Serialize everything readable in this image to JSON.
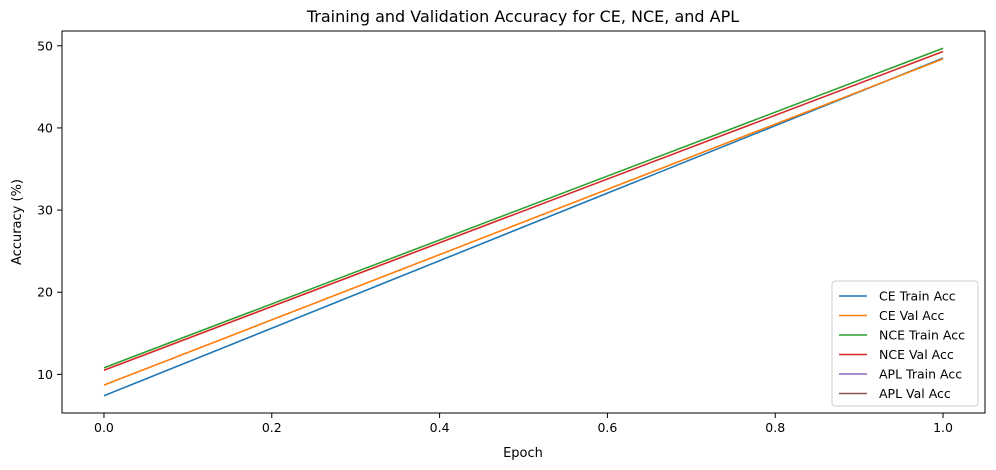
{
  "chart_data": {
    "type": "line",
    "title": "Training and Validation Accuracy for CE, NCE, and APL",
    "xlabel": "Epoch",
    "ylabel": "Accuracy (%)",
    "x": [
      0,
      1
    ],
    "xlim": [
      -0.05,
      1.05
    ],
    "ylim": [
      5.3,
      51.8
    ],
    "xticks": [
      "0.0",
      "0.2",
      "0.4",
      "0.6",
      "0.8",
      "1.0"
    ],
    "yticks": [
      "10",
      "20",
      "30",
      "40",
      "50"
    ],
    "grid": false,
    "legend_position": "bottom-right",
    "series": [
      {
        "name": "CE Train Acc",
        "values": [
          7.4,
          48.5
        ],
        "color": "#1f77b4"
      },
      {
        "name": "CE Val Acc",
        "values": [
          8.7,
          48.4
        ],
        "color": "#ff7f0e"
      },
      {
        "name": "NCE Train Acc",
        "values": [
          10.8,
          49.7
        ],
        "color": "#2ca02c"
      },
      {
        "name": "NCE Val Acc",
        "values": [
          10.5,
          49.3
        ],
        "color": "#d62728"
      },
      {
        "name": "APL Train Acc",
        "values": [
          null,
          null
        ],
        "color": "#9467bd"
      },
      {
        "name": "APL Val Acc",
        "values": [
          null,
          null
        ],
        "color": "#8c564b"
      }
    ]
  }
}
